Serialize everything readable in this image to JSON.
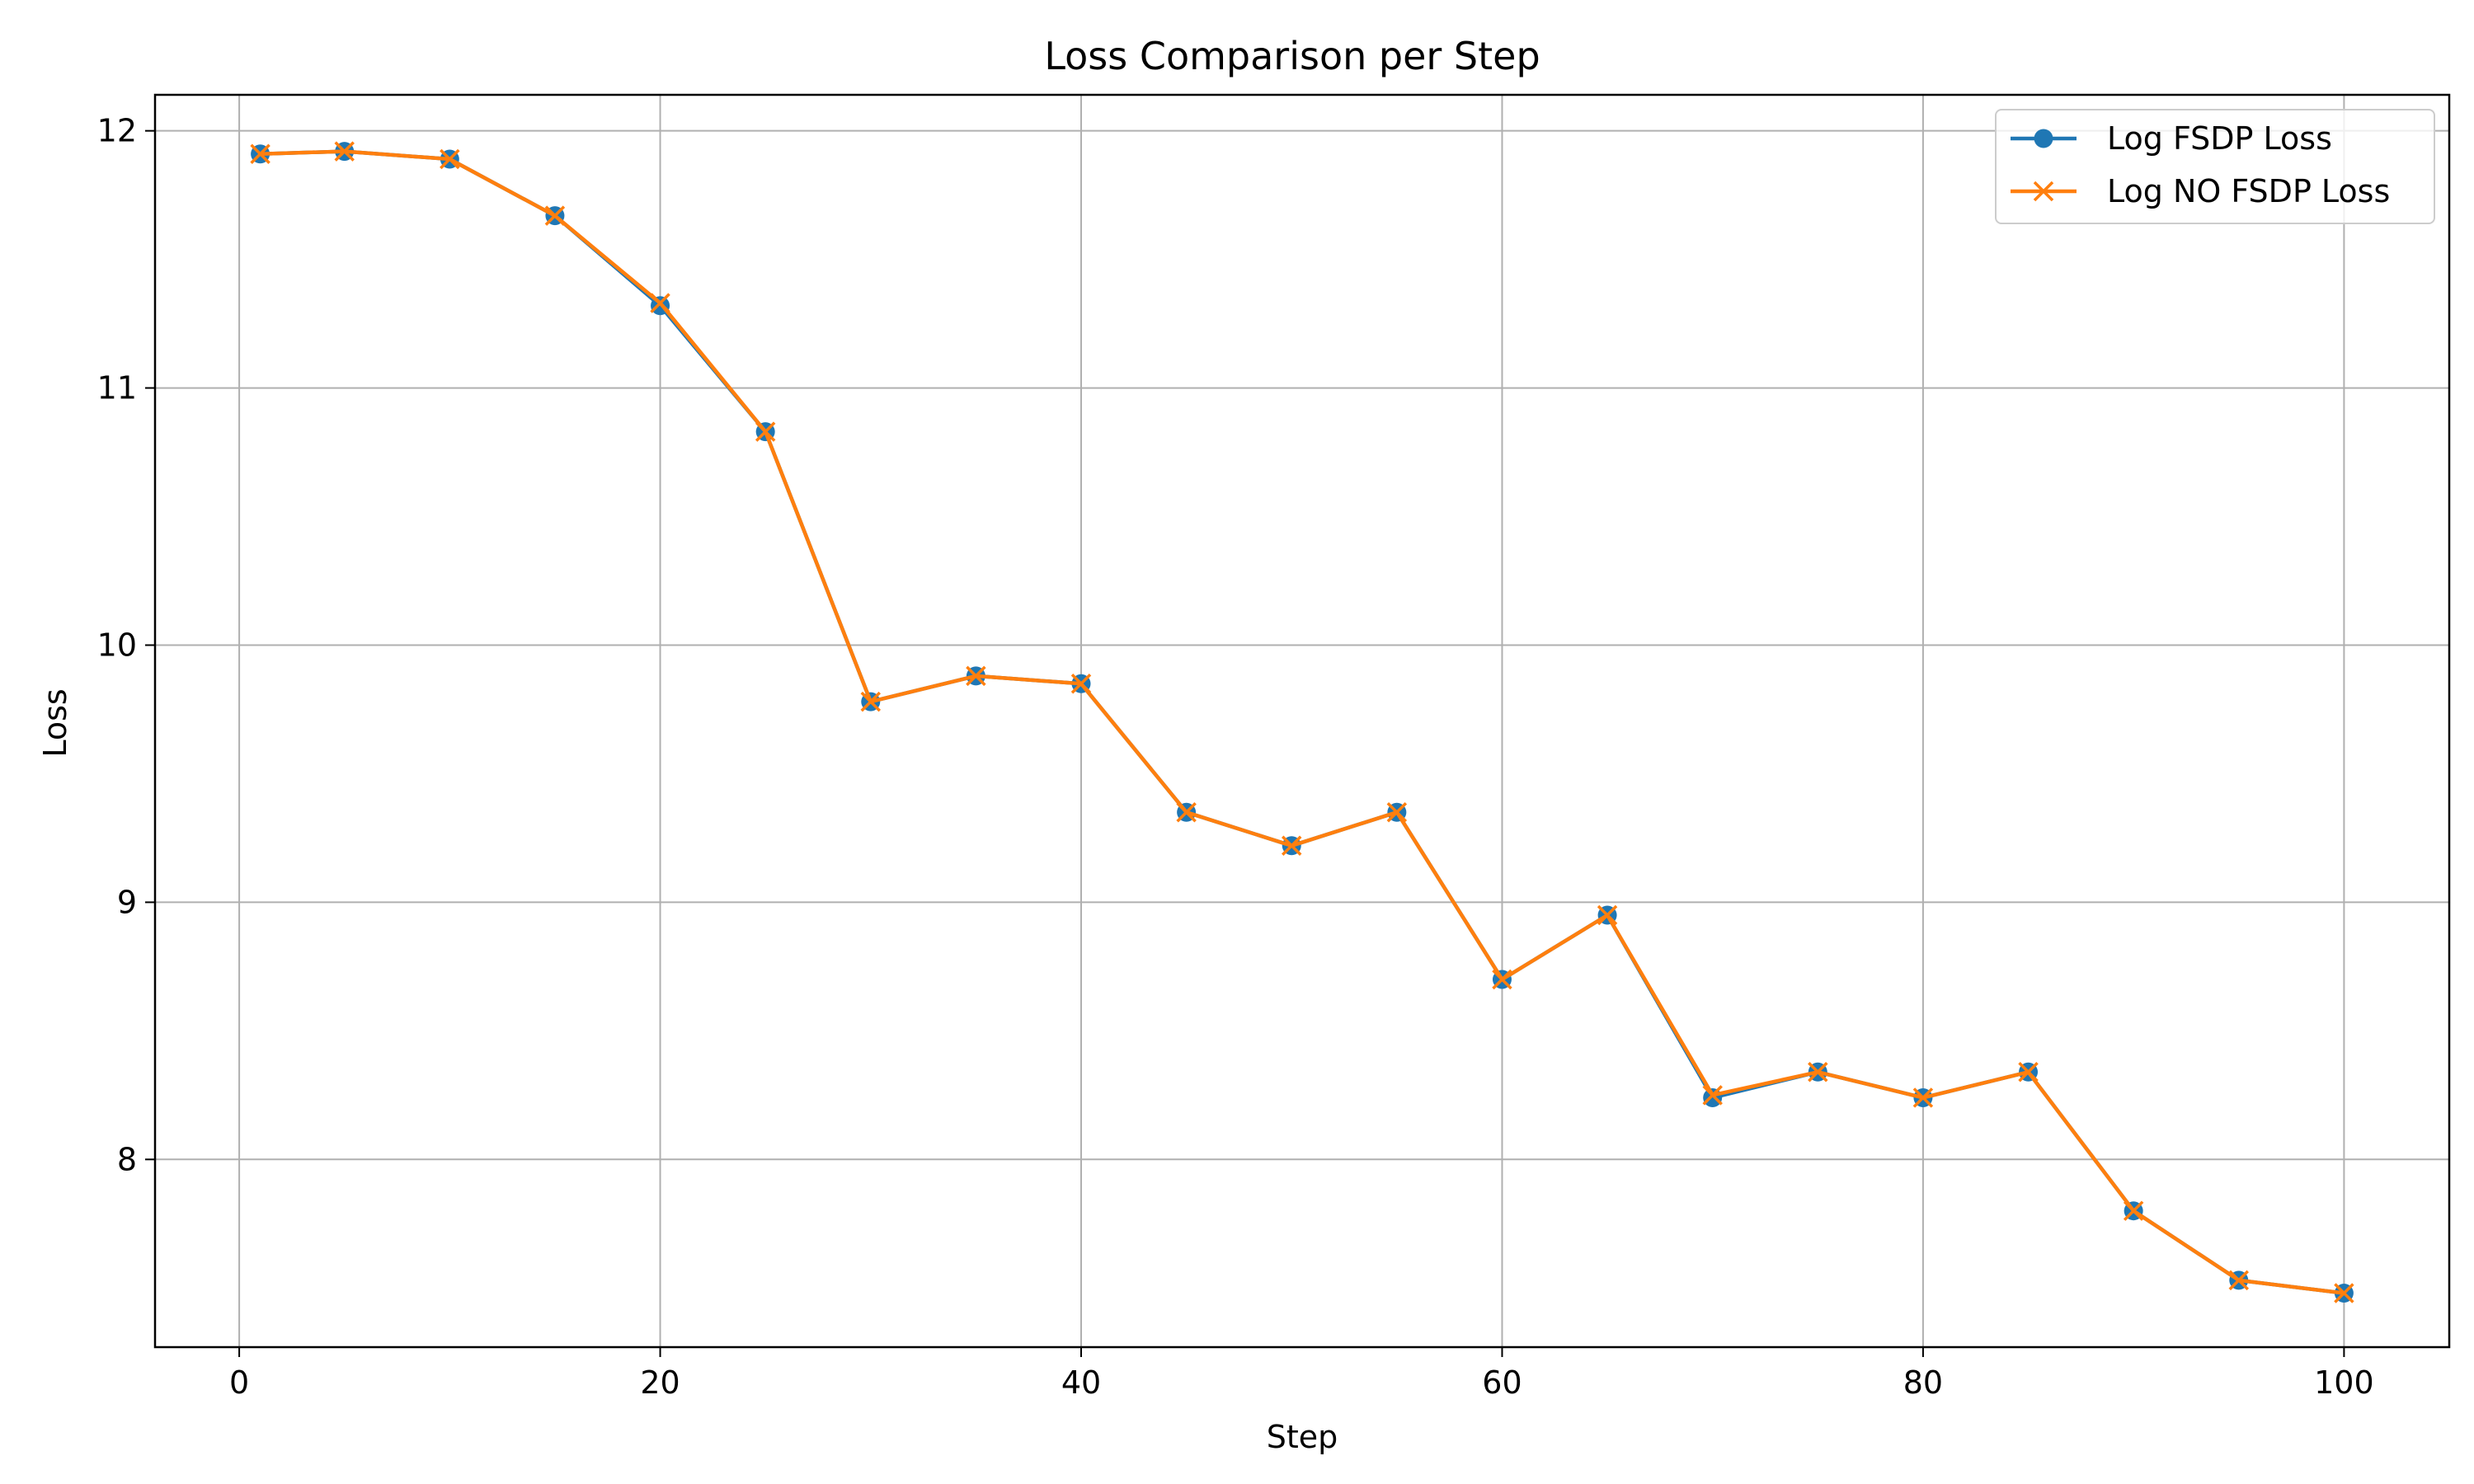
{
  "chart_data": {
    "type": "line",
    "title": "Loss Comparison per Step",
    "xlabel": "Step",
    "ylabel": "Loss",
    "xlim": [
      -4,
      105
    ],
    "ylim": [
      7.27,
      12.14
    ],
    "xticks": [
      0,
      20,
      40,
      60,
      80,
      100
    ],
    "yticks": [
      8,
      9,
      10,
      11,
      12
    ],
    "xtick_labels": [
      "0",
      "20",
      "40",
      "60",
      "80",
      "100"
    ],
    "ytick_labels": [
      "8",
      "9",
      "10",
      "11",
      "12"
    ],
    "grid": true,
    "legend_position": "top-right",
    "x": [
      1,
      5,
      10,
      15,
      20,
      25,
      30,
      35,
      40,
      45,
      50,
      55,
      60,
      65,
      70,
      75,
      80,
      85,
      90,
      95,
      100
    ],
    "series": [
      {
        "name": "Log FSDP Loss",
        "color": "#1f77b4",
        "marker": "circle",
        "values": [
          11.91,
          11.92,
          11.89,
          11.67,
          11.32,
          10.83,
          9.78,
          9.88,
          9.85,
          9.35,
          9.22,
          9.35,
          8.7,
          8.95,
          8.24,
          8.34,
          8.24,
          8.34,
          7.8,
          7.53,
          7.48
        ]
      },
      {
        "name": "Log NO FSDP Loss",
        "color": "#ff7f0e",
        "marker": "x",
        "values": [
          11.91,
          11.92,
          11.89,
          11.67,
          11.33,
          10.83,
          9.78,
          9.88,
          9.85,
          9.35,
          9.22,
          9.35,
          8.7,
          8.95,
          8.25,
          8.34,
          8.24,
          8.34,
          7.8,
          7.53,
          7.48
        ]
      }
    ]
  }
}
